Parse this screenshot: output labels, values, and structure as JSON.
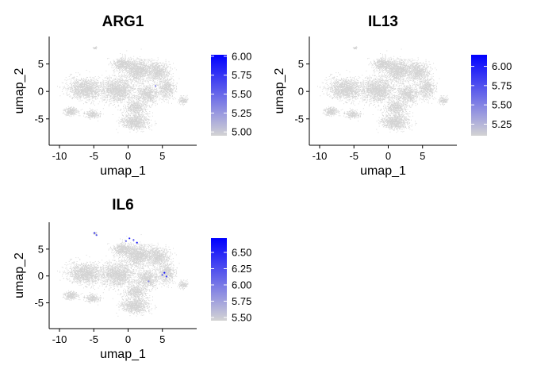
{
  "chart_data": [
    {
      "type": "scatter",
      "title": "ARG1",
      "xlabel": "umap_1",
      "ylabel": "umap_2",
      "xlim": [
        -11.5,
        10
      ],
      "ylim": [
        -9.8,
        10
      ],
      "xticks": [
        -10,
        -5,
        0,
        5
      ],
      "yticks": [
        -5,
        0,
        5
      ],
      "grid": false,
      "legend": "right",
      "colorbar": {
        "min": 4.95,
        "max": 6.02,
        "ticks": [
          5.0,
          5.25,
          5.5,
          5.75,
          6.0
        ],
        "low_color": "#d3d3d3",
        "high_color": "#0000ff"
      },
      "highlights": [
        {
          "x": 4.0,
          "y": 1.0,
          "v": 5.4
        }
      ]
    },
    {
      "type": "scatter",
      "title": "IL13",
      "xlabel": "umap_1",
      "ylabel": "umap_2",
      "xlim": [
        -11.5,
        10
      ],
      "ylim": [
        -9.8,
        10
      ],
      "xticks": [
        -10,
        -5,
        0,
        5
      ],
      "yticks": [
        -5,
        0,
        5
      ],
      "grid": false,
      "legend": "right",
      "colorbar": {
        "min": 5.1,
        "max": 6.15,
        "ticks": [
          5.25,
          5.5,
          5.75,
          6.0
        ],
        "low_color": "#d3d3d3",
        "high_color": "#0000ff"
      },
      "highlights": []
    },
    {
      "type": "scatter",
      "title": "IL6",
      "xlabel": "umap_1",
      "ylabel": "umap_2",
      "xlim": [
        -11.5,
        10
      ],
      "ylim": [
        -9.8,
        10
      ],
      "xticks": [
        -10,
        -5,
        0,
        5
      ],
      "yticks": [
        -5,
        0,
        5
      ],
      "grid": false,
      "legend": "right",
      "colorbar": {
        "min": 5.45,
        "max": 6.72,
        "ticks": [
          5.5,
          5.75,
          6.0,
          6.25,
          6.5
        ],
        "low_color": "#d3d3d3",
        "high_color": "#0000ff"
      },
      "highlights": [
        {
          "x": -4.9,
          "y": 8.0,
          "v": 6.4
        },
        {
          "x": -4.6,
          "y": 7.6,
          "v": 6.2
        },
        {
          "x": 0.2,
          "y": 7.0,
          "v": 6.5
        },
        {
          "x": 0.8,
          "y": 6.7,
          "v": 6.3
        },
        {
          "x": 1.3,
          "y": 6.2,
          "v": 6.6
        },
        {
          "x": -0.3,
          "y": 6.5,
          "v": 6.1
        },
        {
          "x": 5.3,
          "y": 0.6,
          "v": 6.6
        },
        {
          "x": 5.6,
          "y": -0.1,
          "v": 6.4
        },
        {
          "x": 5.0,
          "y": 0.2,
          "v": 6.2
        },
        {
          "x": 3.0,
          "y": -1.0,
          "v": 5.9
        }
      ]
    }
  ]
}
